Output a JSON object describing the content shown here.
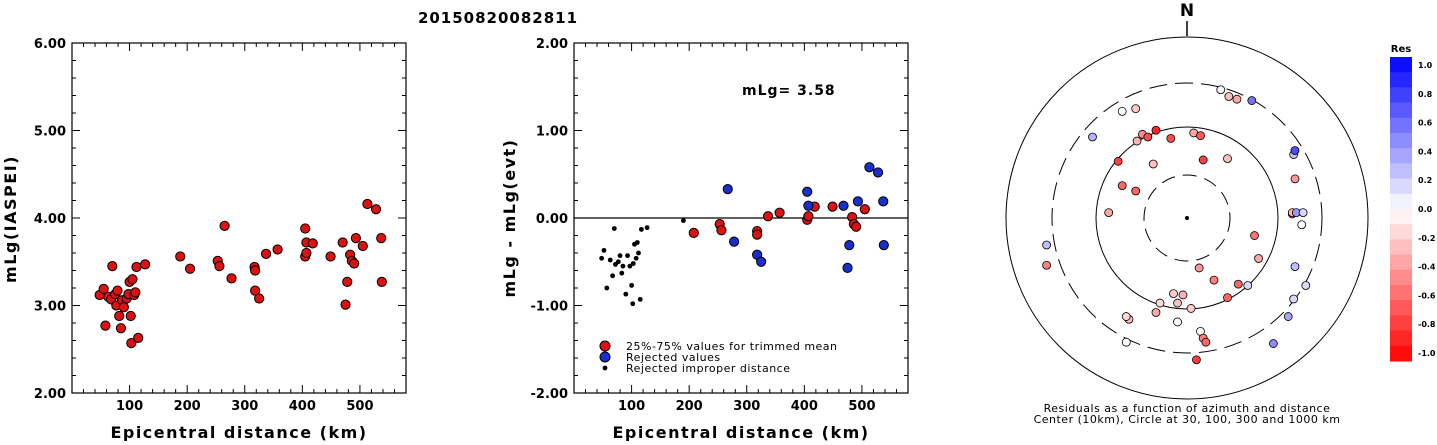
{
  "title": "20150820082811",
  "chart_data": [
    {
      "type": "scatter",
      "title": "",
      "xlabel": "Epicentral distance (km)",
      "ylabel": "mLg(IASPEI)",
      "xlim": [
        0,
        580
      ],
      "ylim": [
        2.0,
        6.0
      ],
      "xticks": [
        "100",
        "200",
        "300",
        "400",
        "500"
      ],
      "yticks": [
        "2.00",
        "3.00",
        "4.00",
        "5.00",
        "6.00"
      ],
      "series": [
        {
          "color": "#dd1111",
          "points": [
            [
              48,
              3.12
            ],
            [
              55,
              3.19
            ],
            [
              58,
              2.77
            ],
            [
              63,
              3.1
            ],
            [
              68,
              3.07
            ],
            [
              70,
              3.45
            ],
            [
              75,
              3.13
            ],
            [
              77,
              3.0
            ],
            [
              79,
              3.17
            ],
            [
              82,
              2.88
            ],
            [
              85,
              2.74
            ],
            [
              87,
              3.06
            ],
            [
              90,
              2.98
            ],
            [
              95,
              3.08
            ],
            [
              98,
              3.13
            ],
            [
              100,
              3.27
            ],
            [
              102,
              2.88
            ],
            [
              103,
              2.57
            ],
            [
              105,
              3.3
            ],
            [
              108,
              3.12
            ],
            [
              110,
              3.15
            ],
            [
              112,
              3.44
            ],
            [
              115,
              2.63
            ],
            [
              127,
              3.47
            ],
            [
              188,
              3.56
            ],
            [
              205,
              3.42
            ],
            [
              253,
              3.51
            ],
            [
              256,
              3.45
            ],
            [
              265,
              3.91
            ],
            [
              277,
              3.31
            ],
            [
              317,
              3.44
            ],
            [
              318,
              3.4
            ],
            [
              318,
              3.17
            ],
            [
              325,
              3.08
            ],
            [
              337,
              3.59
            ],
            [
              357,
              3.64
            ],
            [
              405,
              3.88
            ],
            [
              405,
              3.56
            ],
            [
              407,
              3.6
            ],
            [
              407,
              3.72
            ],
            [
              418,
              3.71
            ],
            [
              449,
              3.56
            ],
            [
              470,
              3.72
            ],
            [
              475,
              3.01
            ],
            [
              478,
              3.27
            ],
            [
              483,
              3.58
            ],
            [
              486,
              3.51
            ],
            [
              490,
              3.48
            ],
            [
              493,
              3.77
            ],
            [
              505,
              3.68
            ],
            [
              513,
              4.16
            ],
            [
              528,
              4.1
            ],
            [
              537,
              3.77
            ],
            [
              538,
              3.27
            ]
          ]
        }
      ]
    },
    {
      "type": "scatter",
      "title": "",
      "xlabel": "Epicentral distance (km)",
      "ylabel": "mLg - mLg(evt)",
      "xlim": [
        0,
        580
      ],
      "ylim": [
        -2.0,
        2.0
      ],
      "xticks": [
        "100",
        "200",
        "300",
        "400",
        "500"
      ],
      "yticks": [
        "-2.00",
        "-1.00",
        "0.00",
        "1.00",
        "2.00"
      ],
      "hline": 0,
      "annotation": "mLg= 3.58",
      "series": [
        {
          "name": "25%-75% values for trimmed mean",
          "color": "#dd1111",
          "points": [
            [
              208,
              -0.17
            ],
            [
              253,
              -0.07
            ],
            [
              256,
              -0.14
            ],
            [
              318,
              -0.15
            ],
            [
              318,
              -0.19
            ],
            [
              337,
              0.02
            ],
            [
              357,
              0.06
            ],
            [
              405,
              -0.02
            ],
            [
              407,
              0.02
            ],
            [
              418,
              0.13
            ],
            [
              449,
              0.13
            ],
            [
              483,
              0.01
            ],
            [
              486,
              -0.07
            ],
            [
              490,
              -0.1
            ],
            [
              505,
              0.1
            ]
          ]
        },
        {
          "name": "Rejected values",
          "color": "#1a2ecc",
          "points": [
            [
              267,
              0.33
            ],
            [
              278,
              -0.27
            ],
            [
              318,
              -0.42
            ],
            [
              325,
              -0.5
            ],
            [
              405,
              0.3
            ],
            [
              407,
              0.14
            ],
            [
              468,
              0.14
            ],
            [
              475,
              -0.57
            ],
            [
              478,
              -0.31
            ],
            [
              493,
              0.19
            ],
            [
              513,
              0.58
            ],
            [
              528,
              0.52
            ],
            [
              537,
              0.19
            ],
            [
              538,
              -0.31
            ]
          ]
        },
        {
          "name": "Rejected improper distance",
          "color": "#000000",
          "points": [
            [
              48,
              -0.46
            ],
            [
              52,
              -0.37
            ],
            [
              57,
              -0.8
            ],
            [
              63,
              -0.48
            ],
            [
              67,
              -0.66
            ],
            [
              70,
              -0.12
            ],
            [
              72,
              -0.53
            ],
            [
              77,
              -0.5
            ],
            [
              80,
              -0.43
            ],
            [
              83,
              -0.63
            ],
            [
              85,
              -0.55
            ],
            [
              90,
              -0.87
            ],
            [
              93,
              -0.43
            ],
            [
              97,
              -0.55
            ],
            [
              100,
              -0.77
            ],
            [
              102,
              -0.98
            ],
            [
              103,
              -0.52
            ],
            [
              105,
              -0.3
            ],
            [
              108,
              -0.46
            ],
            [
              110,
              -0.28
            ],
            [
              112,
              -0.4
            ],
            [
              115,
              -0.93
            ],
            [
              117,
              -0.13
            ],
            [
              127,
              -0.11
            ],
            [
              190,
              -0.03
            ]
          ]
        }
      ]
    },
    {
      "type": "scatter",
      "title": "",
      "north_label": "N",
      "caption_line1": "Residuals as a function of azimuth and distance",
      "caption_line2": "Center (10km), Circle at 30, 100, 300 and 1000 km",
      "colorbar_title": "Res",
      "colorbar_ticks": [
        "1.0",
        "0.8",
        "0.6",
        "0.4",
        "0.2",
        "0.0",
        "-0.2",
        "-0.4",
        "-0.6",
        "-0.8",
        "-1.0"
      ],
      "circles_km": [
        30,
        100,
        300,
        1000
      ],
      "points_res_xy": [
        [
          0.25,
          0.95,
          -0.05
        ],
        [
          0.48,
          0.87,
          0.55
        ],
        [
          0.31,
          0.9,
          -0.25
        ],
        [
          0.37,
          0.88,
          -0.35
        ],
        [
          -0.48,
          0.79,
          0.0
        ],
        [
          -0.38,
          0.81,
          -0.2
        ],
        [
          -0.7,
          0.6,
          0.3
        ],
        [
          -0.33,
          0.62,
          -0.45
        ],
        [
          -0.37,
          0.57,
          -0.3
        ],
        [
          -0.29,
          0.6,
          -0.7
        ],
        [
          -0.23,
          0.65,
          -0.85
        ],
        [
          -0.12,
          0.59,
          -0.7
        ],
        [
          0.05,
          0.63,
          -0.35
        ],
        [
          0.1,
          0.61,
          -0.65
        ],
        [
          0.12,
          0.43,
          -0.75
        ],
        [
          0.3,
          0.44,
          -0.25
        ],
        [
          -0.25,
          0.4,
          -0.25
        ],
        [
          -0.51,
          0.42,
          -0.75
        ],
        [
          -0.48,
          0.24,
          -0.6
        ],
        [
          -0.38,
          0.2,
          -0.6
        ],
        [
          -0.58,
          0.04,
          -0.35
        ],
        [
          0.79,
          0.47,
          0.25
        ],
        [
          0.8,
          0.5,
          0.7
        ],
        [
          0.8,
          0.29,
          -0.4
        ],
        [
          0.78,
          0.03,
          -0.45
        ],
        [
          0.78,
          0.04,
          -0.3
        ],
        [
          0.81,
          0.04,
          0.4
        ],
        [
          0.86,
          0.04,
          0.15
        ],
        [
          0.85,
          -0.05,
          0.0
        ],
        [
          0.5,
          -0.13,
          -0.55
        ],
        [
          0.53,
          -0.3,
          -0.35
        ],
        [
          0.8,
          -0.36,
          0.25
        ],
        [
          0.88,
          -0.5,
          0.15
        ],
        [
          0.79,
          -0.6,
          0.15
        ],
        [
          0.75,
          -0.73,
          0.35
        ],
        [
          0.45,
          -0.5,
          0.15
        ],
        [
          0.09,
          -0.37,
          -0.4
        ],
        [
          0.2,
          -0.46,
          -0.5
        ],
        [
          -0.1,
          -0.56,
          -0.2
        ],
        [
          -0.03,
          -0.57,
          -0.3
        ],
        [
          0.03,
          -0.67,
          -0.2
        ],
        [
          -0.07,
          -0.63,
          -0.25
        ],
        [
          0.38,
          -0.49,
          -0.6
        ],
        [
          0.3,
          -0.59,
          -0.6
        ],
        [
          -0.2,
          -0.63,
          -0.15
        ],
        [
          -0.23,
          -0.7,
          -0.35
        ],
        [
          -0.07,
          -0.77,
          0.0
        ],
        [
          0.1,
          -0.84,
          0.0
        ],
        [
          0.12,
          -0.89,
          -0.5
        ],
        [
          -0.43,
          -0.75,
          -0.25
        ],
        [
          -0.45,
          -0.73,
          -0.15
        ],
        [
          -0.45,
          -0.92,
          0.0
        ],
        [
          0.07,
          -1.05,
          -0.75
        ],
        [
          -1.04,
          -0.35,
          -0.5
        ],
        [
          -1.04,
          -0.2,
          0.25
        ],
        [
          0.14,
          -0.92,
          -0.6
        ],
        [
          0.64,
          -0.93,
          0.45
        ]
      ]
    }
  ]
}
